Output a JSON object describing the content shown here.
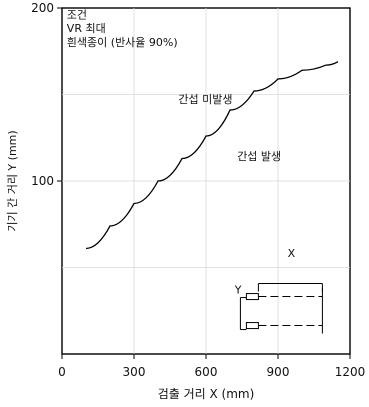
{
  "chart_data": {
    "type": "line",
    "x": [
      100,
      200,
      300,
      400,
      500,
      600,
      700,
      800,
      900,
      1000,
      1100,
      1150
    ],
    "series": [
      {
        "name": "",
        "y": [
          61,
          74,
          87,
          100,
          113,
          126,
          141,
          152,
          159,
          164,
          167,
          169
        ]
      }
    ],
    "xlabel": "검출 거리 X (mm)",
    "ylabel": "기기 간 거리 Y (mm)",
    "xlim": [
      0,
      1200
    ],
    "ylim": [
      0,
      200
    ],
    "xticks": [
      0,
      300,
      600,
      900,
      1200
    ],
    "yticks": [
      100,
      200
    ],
    "grid": true,
    "annotations": [
      {
        "text": "조건",
        "x": 20,
        "y": 194
      },
      {
        "text": "VR 최대",
        "x": 20,
        "y": 186
      },
      {
        "text": "흰색종이 (반사율 90%)",
        "x": 20,
        "y": 178
      },
      {
        "text": "간섭 미발생",
        "x": 485,
        "y": 145
      },
      {
        "text": "간섭 발생",
        "x": 730,
        "y": 112
      },
      {
        "text": "X",
        "x": 940,
        "y": 56
      },
      {
        "text": "Y",
        "x": 720,
        "y": 35
      }
    ]
  }
}
